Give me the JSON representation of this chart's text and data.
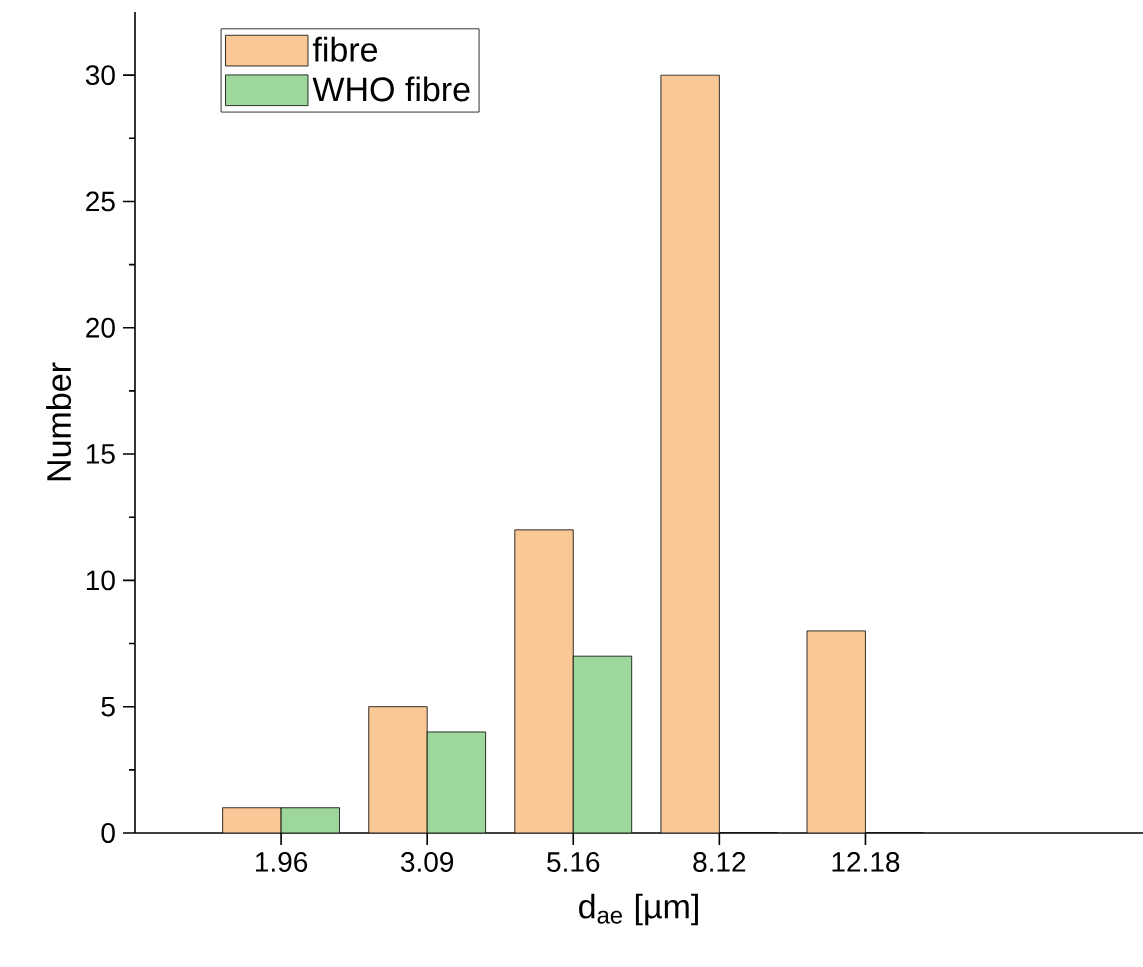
{
  "chart_data": {
    "type": "bar",
    "xlabel": "d$_{ae}$ [µm]",
    "ylabel": "Number",
    "categories": [
      "1.96",
      "3.09",
      "5.16",
      "8.12",
      "12.18"
    ],
    "series": [
      {
        "name": "fibre",
        "color": "#f9c896",
        "values": [
          1,
          5,
          12,
          30,
          8
        ]
      },
      {
        "name": "WHO fibre",
        "color": "#9dd79c",
        "values": [
          1,
          4,
          7,
          0,
          0
        ]
      }
    ],
    "ylim": [
      0,
      32.5
    ],
    "yticks": [
      0,
      5,
      10,
      15,
      20,
      25,
      30
    ],
    "legend": "top left",
    "grid": false
  }
}
